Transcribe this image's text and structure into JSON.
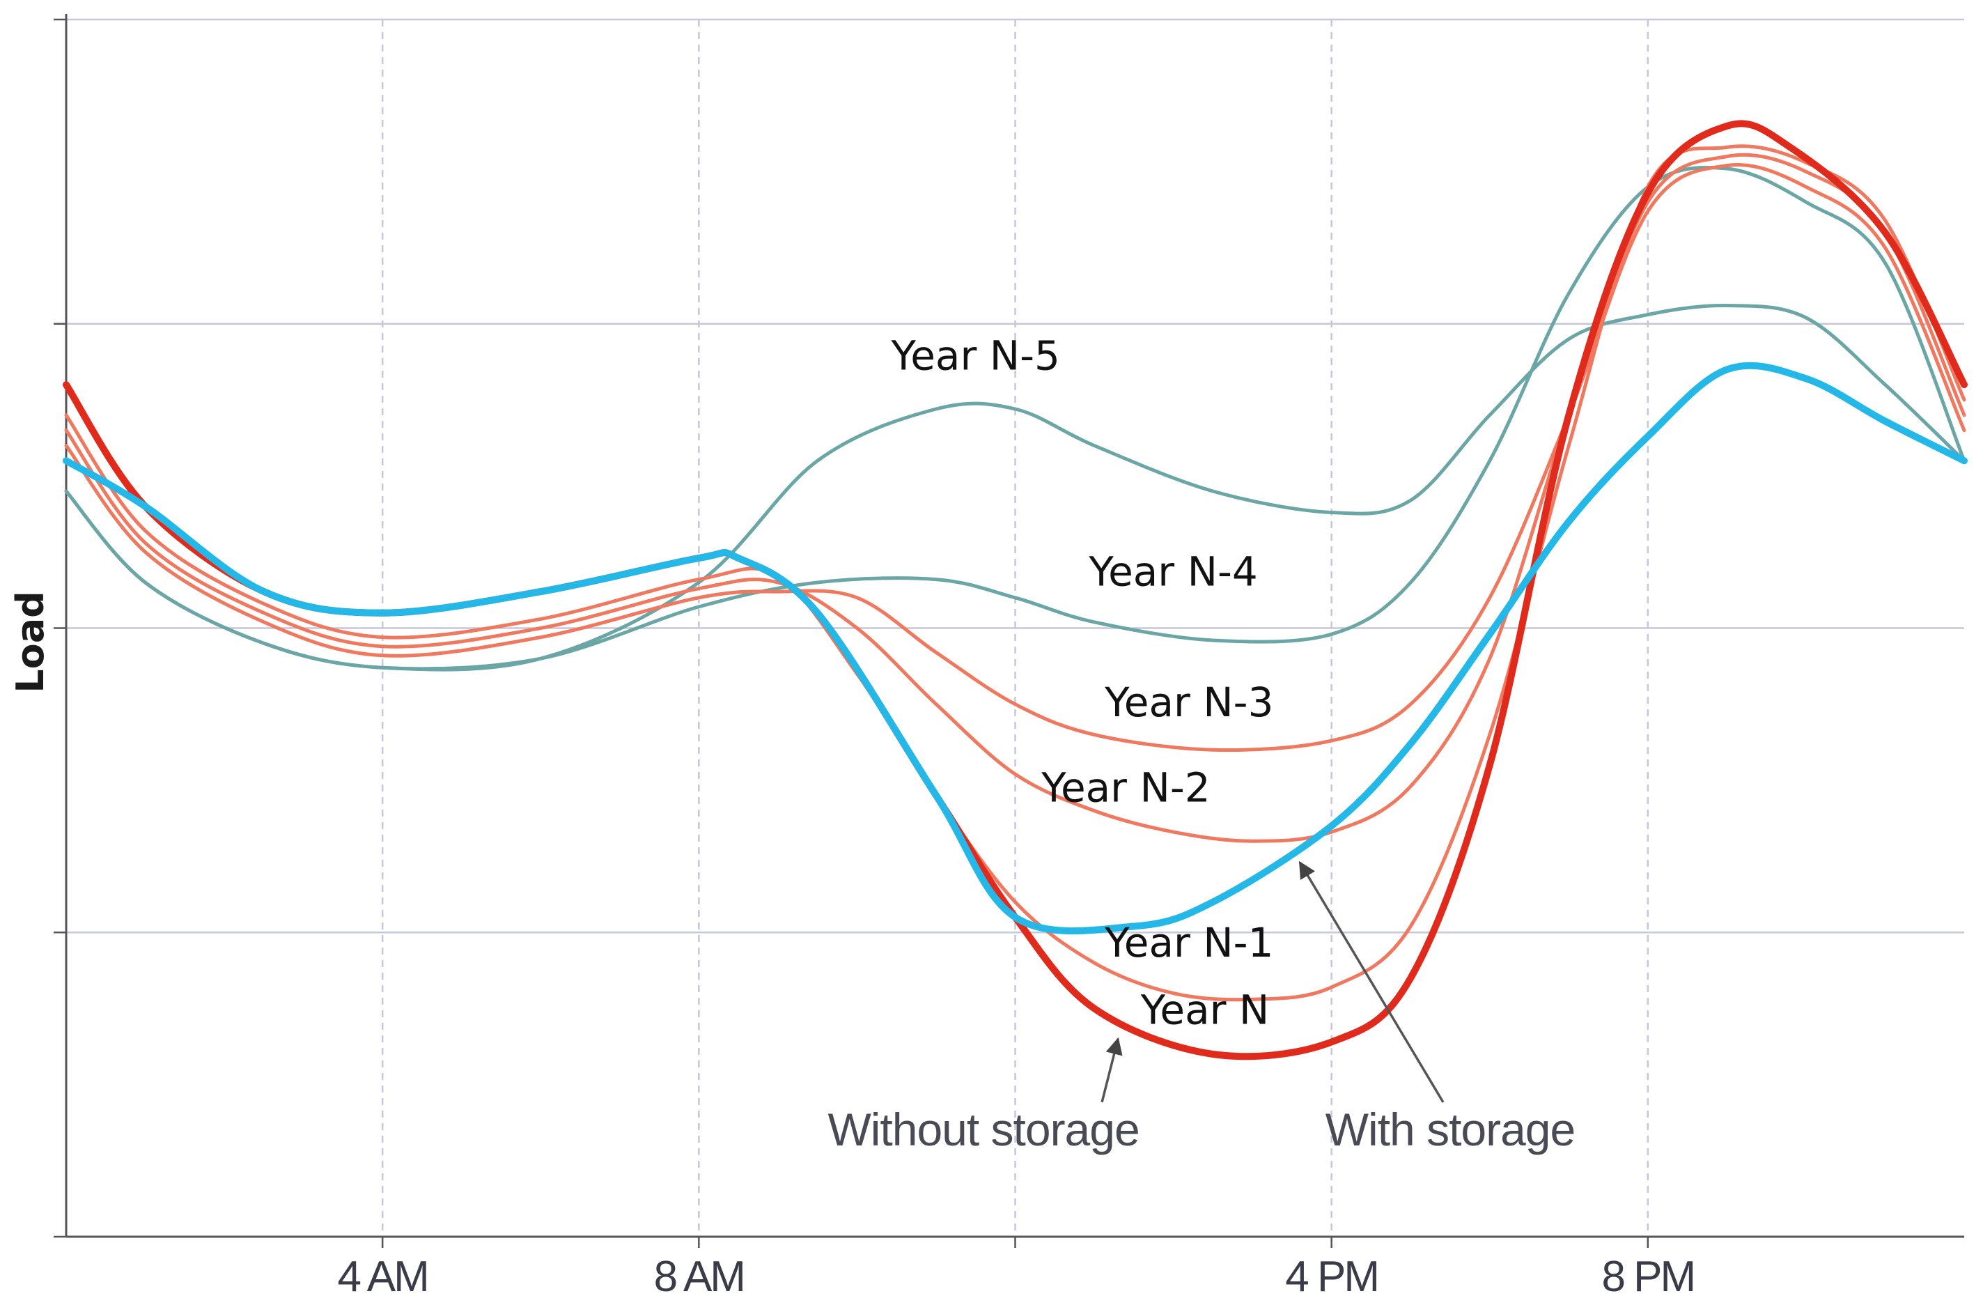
{
  "chart_data": {
    "type": "line",
    "title": "",
    "xlabel": "",
    "ylabel": "Load",
    "x_unit": "hour of day",
    "xlim": [
      0,
      24
    ],
    "ylim": [
      0,
      4
    ],
    "grid": true,
    "x_ticks": [
      {
        "value": 4,
        "label": "4 AM"
      },
      {
        "value": 8,
        "label": "8 AM"
      },
      {
        "value": 12,
        "label": ""
      },
      {
        "value": 16,
        "label": "4 PM"
      },
      {
        "value": 20,
        "label": "8 PM"
      }
    ],
    "y_ticks": [
      0,
      1,
      2,
      3,
      4
    ],
    "colors": {
      "year_n": "#e02a1c",
      "year_n_prior": "#f0785e",
      "year_n_early": "#6aa6a6",
      "with_storage": "#23b8e8",
      "grid": "#c6c6dc",
      "axis": "#555555",
      "annotation": "#555555"
    },
    "series": [
      {
        "name": "Year N-5",
        "key": "year_n_early",
        "x": [
          0,
          1,
          2.5,
          4,
          6,
          8,
          9.5,
          11,
          12,
          13,
          14.5,
          16,
          17,
          18,
          19,
          20,
          21,
          22,
          23,
          24
        ],
        "y": [
          2.45,
          2.15,
          1.95,
          1.87,
          1.9,
          2.15,
          2.55,
          2.72,
          2.72,
          2.6,
          2.45,
          2.38,
          2.42,
          2.7,
          2.95,
          3.03,
          3.06,
          3.02,
          2.8,
          2.55
        ]
      },
      {
        "name": "Year N-4",
        "key": "year_n_early",
        "x": [
          0,
          1,
          2.5,
          4,
          6,
          8,
          9.5,
          11,
          12,
          13,
          14.5,
          16,
          17,
          18,
          19,
          20,
          21,
          22,
          23,
          24
        ],
        "y": [
          2.45,
          2.15,
          1.95,
          1.87,
          1.9,
          2.07,
          2.15,
          2.16,
          2.1,
          2.02,
          1.96,
          1.98,
          2.15,
          2.55,
          3.1,
          3.45,
          3.51,
          3.4,
          3.2,
          2.55
        ]
      },
      {
        "name": "Year N-3",
        "key": "year_n_prior",
        "x": [
          0,
          1,
          2.5,
          4,
          6,
          8,
          9,
          10,
          11,
          12,
          13,
          14.5,
          16,
          17,
          18,
          19,
          20,
          21,
          22,
          23,
          24
        ],
        "y": [
          2.6,
          2.25,
          2.02,
          1.91,
          1.97,
          2.1,
          2.12,
          2.1,
          1.92,
          1.75,
          1.65,
          1.6,
          1.63,
          1.75,
          2.1,
          2.7,
          3.37,
          3.52,
          3.45,
          3.25,
          2.65
        ]
      },
      {
        "name": "Year N-2",
        "key": "year_n_prior",
        "x": [
          0,
          1,
          2.5,
          4,
          6,
          8,
          9,
          10,
          11,
          12,
          13,
          14,
          15,
          16,
          17,
          18,
          19,
          20,
          21,
          22,
          23,
          24
        ],
        "y": [
          2.65,
          2.28,
          2.05,
          1.94,
          2.0,
          2.13,
          2.15,
          2.0,
          1.75,
          1.52,
          1.4,
          1.33,
          1.3,
          1.33,
          1.48,
          1.9,
          2.7,
          3.4,
          3.55,
          3.5,
          3.3,
          2.7
        ]
      },
      {
        "name": "Year N-1",
        "key": "year_n_prior",
        "x": [
          0,
          1,
          2.5,
          4,
          6,
          8,
          9,
          10,
          11,
          12,
          13,
          14,
          15,
          16,
          17,
          18,
          19,
          20,
          21,
          22,
          23,
          24
        ],
        "y": [
          2.7,
          2.32,
          2.08,
          1.97,
          2.03,
          2.16,
          2.17,
          1.85,
          1.45,
          1.1,
          0.9,
          0.8,
          0.78,
          0.82,
          1.02,
          1.65,
          2.6,
          3.45,
          3.58,
          3.53,
          3.34,
          2.75
        ]
      },
      {
        "name": "Year N",
        "key": "year_n",
        "x": [
          0,
          1,
          2.5,
          4,
          6,
          8,
          8.5,
          9.5,
          11,
          12,
          13,
          14.5,
          16,
          17,
          18,
          19,
          20,
          21,
          21.8,
          23,
          24
        ],
        "y": [
          2.8,
          2.4,
          2.12,
          2.05,
          2.12,
          2.23,
          2.23,
          2.05,
          1.45,
          1.05,
          0.75,
          0.6,
          0.64,
          0.85,
          1.55,
          2.7,
          3.43,
          3.65,
          3.58,
          3.3,
          2.8
        ]
      },
      {
        "name": "With storage",
        "key": "with_storage",
        "x": [
          0,
          1,
          2.5,
          4,
          6,
          8,
          8.5,
          9.5,
          11,
          12,
          13.5,
          14.5,
          16,
          17,
          18,
          19,
          20,
          21,
          22,
          23,
          24
        ],
        "y": [
          2.55,
          2.4,
          2.12,
          2.05,
          2.12,
          2.23,
          2.23,
          2.05,
          1.45,
          1.05,
          1.02,
          1.1,
          1.35,
          1.62,
          1.98,
          2.35,
          2.63,
          2.85,
          2.82,
          2.68,
          2.55
        ]
      }
    ],
    "annotations": [
      {
        "text": "Year N-5",
        "x": 11.5,
        "y": 2.85
      },
      {
        "text": "Year N-4",
        "x": 14.0,
        "y": 2.14
      },
      {
        "text": "Year N-3",
        "x": 14.2,
        "y": 1.71
      },
      {
        "text": "Year N-2",
        "x": 13.4,
        "y": 1.43
      },
      {
        "text": "Year N-1",
        "x": 14.2,
        "y": 0.92
      },
      {
        "text": "Year N",
        "x": 14.4,
        "y": 0.7
      },
      {
        "text": "Without storage",
        "x": 11.6,
        "y": 0.3,
        "arrow_to_x": 13.3,
        "arrow_to_y": 0.65
      },
      {
        "text": "With storage",
        "x": 17.5,
        "y": 0.3,
        "arrow_to_x": 15.6,
        "arrow_to_y": 1.23
      }
    ]
  }
}
